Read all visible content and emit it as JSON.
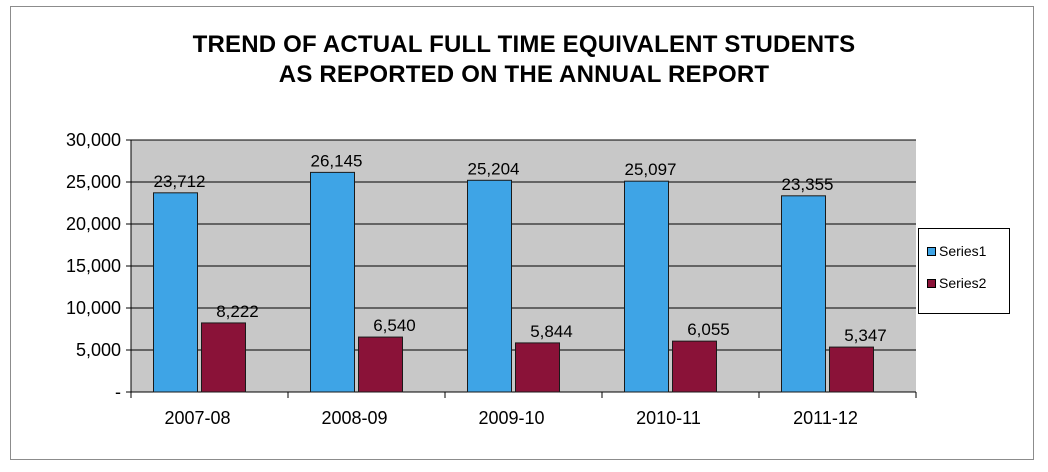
{
  "chart_data": {
    "type": "bar",
    "title_lines": [
      "TREND OF ACTUAL FULL TIME EQUIVALENT STUDENTS",
      "AS REPORTED ON THE ANNUAL REPORT"
    ],
    "categories": [
      "2007-08",
      "2008-09",
      "2009-10",
      "2010-11",
      "2011-12"
    ],
    "series": [
      {
        "name": "Series1",
        "color": "#3ea4e6",
        "values": [
          23712,
          26145,
          25204,
          25097,
          23355
        ],
        "labels": [
          "23,712",
          "26,145",
          "25,204",
          "25,097",
          "23,355"
        ]
      },
      {
        "name": "Series2",
        "color": "#8a1238",
        "values": [
          8222,
          6540,
          5844,
          6055,
          5347
        ],
        "labels": [
          "8,222",
          "6,540",
          "5,844",
          "6,055",
          "5,347"
        ]
      }
    ],
    "ylim": [
      0,
      30000
    ],
    "yticks": [
      0,
      5000,
      10000,
      15000,
      20000,
      25000,
      30000
    ],
    "ytick_labels": [
      "-",
      "5,000",
      "10,000",
      "15,000",
      "20,000",
      "25,000",
      "30,000"
    ],
    "xlabel": "",
    "ylabel": "",
    "grid": true,
    "plot_background": "#c8c8c8",
    "legend_position": "right"
  }
}
